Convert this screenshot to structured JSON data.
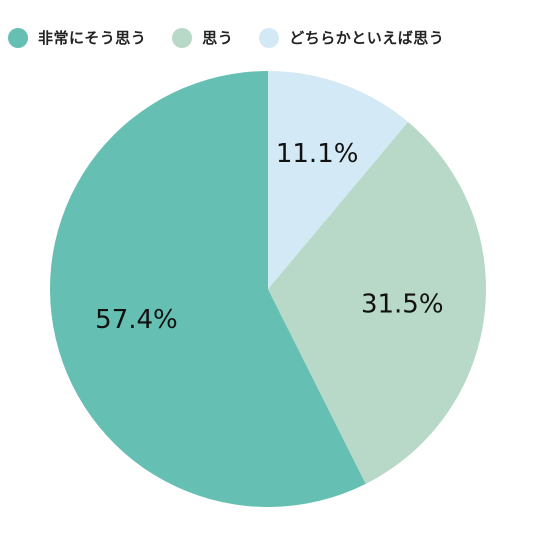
{
  "chart_data": {
    "type": "pie",
    "categories": [
      "非常にそう思う",
      "思う",
      "どちらかといえば思う"
    ],
    "values": [
      57.4,
      31.5,
      11.1
    ],
    "value_labels": [
      "57.4%",
      "31.5%",
      "11.1%"
    ],
    "colors": [
      "#65bfb2",
      "#b8d9c7",
      "#d3e9f5"
    ],
    "legend_position": "top-left",
    "start_angle": "12-o'clock, counter-clockwise"
  }
}
